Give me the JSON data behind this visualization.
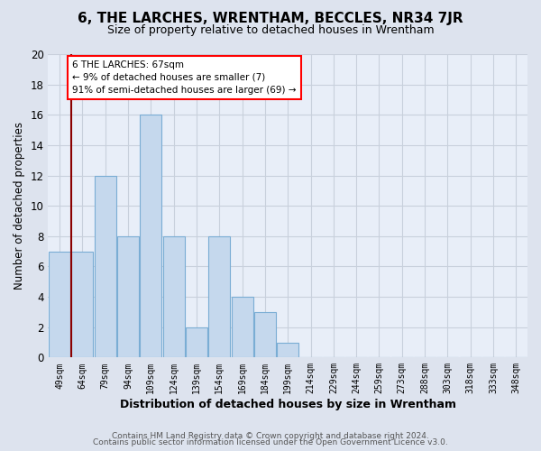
{
  "title": "6, THE LARCHES, WRENTHAM, BECCLES, NR34 7JR",
  "subtitle": "Size of property relative to detached houses in Wrentham",
  "xlabel": "Distribution of detached houses by size in Wrentham",
  "ylabel": "Number of detached properties",
  "bar_color": "#c5d8ed",
  "bar_edgecolor": "#7aadd4",
  "grid_color": "#c8d0dc",
  "bg_color": "#dde3ee",
  "plot_bg_color": "#e8eef8",
  "categories": [
    "49sqm",
    "64sqm",
    "79sqm",
    "94sqm",
    "109sqm",
    "124sqm",
    "139sqm",
    "154sqm",
    "169sqm",
    "184sqm",
    "199sqm",
    "214sqm",
    "229sqm",
    "244sqm",
    "259sqm",
    "273sqm",
    "288sqm",
    "303sqm",
    "318sqm",
    "333sqm",
    "348sqm"
  ],
  "values": [
    7,
    7,
    12,
    8,
    16,
    8,
    2,
    8,
    4,
    3,
    1,
    0,
    0,
    0,
    0,
    0,
    0,
    0,
    0,
    0,
    0
  ],
  "ylim": [
    0,
    20
  ],
  "yticks": [
    0,
    2,
    4,
    6,
    8,
    10,
    12,
    14,
    16,
    18,
    20
  ],
  "property_line_x": 0.5,
  "annotation_box_text": "6 THE LARCHES: 67sqm\n← 9% of detached houses are smaller (7)\n91% of semi-detached houses are larger (69) →",
  "footer_line1": "Contains HM Land Registry data © Crown copyright and database right 2024.",
  "footer_line2": "Contains public sector information licensed under the Open Government Licence v3.0."
}
